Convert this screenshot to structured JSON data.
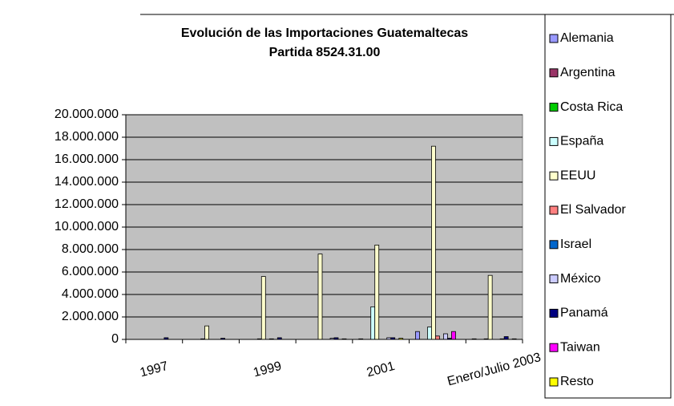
{
  "chart_data": {
    "type": "bar",
    "title": "Evolución de las Importaciones Guatemaltecas",
    "subtitle": "Partida 8524.31.00",
    "categories": [
      "1997",
      null,
      "1999",
      null,
      "2001",
      null,
      "Enero/Julio 2003"
    ],
    "series": [
      {
        "name": "Alemania",
        "color": "#9999ff",
        "values": [
          0,
          0,
          0,
          0,
          50000,
          700000,
          50000
        ]
      },
      {
        "name": "Argentina",
        "color": "#993366",
        "values": [
          0,
          0,
          0,
          0,
          0,
          0,
          0
        ]
      },
      {
        "name": "Costa Rica",
        "color": "#00cc00",
        "values": [
          0,
          0,
          0,
          0,
          0,
          0,
          0
        ]
      },
      {
        "name": "España",
        "color": "#ccffff",
        "values": [
          0,
          50000,
          50000,
          0,
          2900000,
          1100000,
          50000
        ]
      },
      {
        "name": "EEUU",
        "color": "#ffffcc",
        "values": [
          0,
          1200000,
          5600000,
          7600000,
          8400000,
          17200000,
          5700000
        ]
      },
      {
        "name": "El Salvador",
        "color": "#ff8080",
        "values": [
          0,
          0,
          0,
          0,
          0,
          300000,
          0
        ]
      },
      {
        "name": "Israel",
        "color": "#0066cc",
        "values": [
          0,
          0,
          50000,
          0,
          0,
          0,
          0
        ]
      },
      {
        "name": "México",
        "color": "#ccccff",
        "values": [
          0,
          0,
          0,
          100000,
          150000,
          500000,
          50000
        ]
      },
      {
        "name": "Panamá",
        "color": "#000080",
        "values": [
          150000,
          100000,
          150000,
          150000,
          150000,
          100000,
          250000
        ]
      },
      {
        "name": "Taiwan",
        "color": "#ff00ff",
        "values": [
          0,
          0,
          0,
          0,
          0,
          700000,
          0
        ]
      },
      {
        "name": "Resto",
        "color": "#ffff00",
        "values": [
          0,
          0,
          0,
          50000,
          100000,
          0,
          50000
        ]
      }
    ],
    "ylim": [
      0,
      20000000
    ],
    "yticks": [
      0,
      {
        "value": 2000000,
        "label": "2.000.000"
      },
      {
        "value": 4000000,
        "label": "4.000.000"
      },
      {
        "value": 6000000,
        "label": "6.000.000"
      },
      {
        "value": 8000000,
        "label": "8.000.000"
      },
      {
        "value": 10000000,
        "label": "10.000.000"
      },
      {
        "value": 12000000,
        "label": "12.000.000"
      },
      {
        "value": 14000000,
        "label": "14.000.000"
      },
      {
        "value": 16000000,
        "label": "16.000.000"
      },
      {
        "value": 18000000,
        "label": "18.000.000"
      },
      {
        "value": 20000000,
        "label": "20.000.000"
      }
    ],
    "grid": true,
    "legend": "right"
  }
}
